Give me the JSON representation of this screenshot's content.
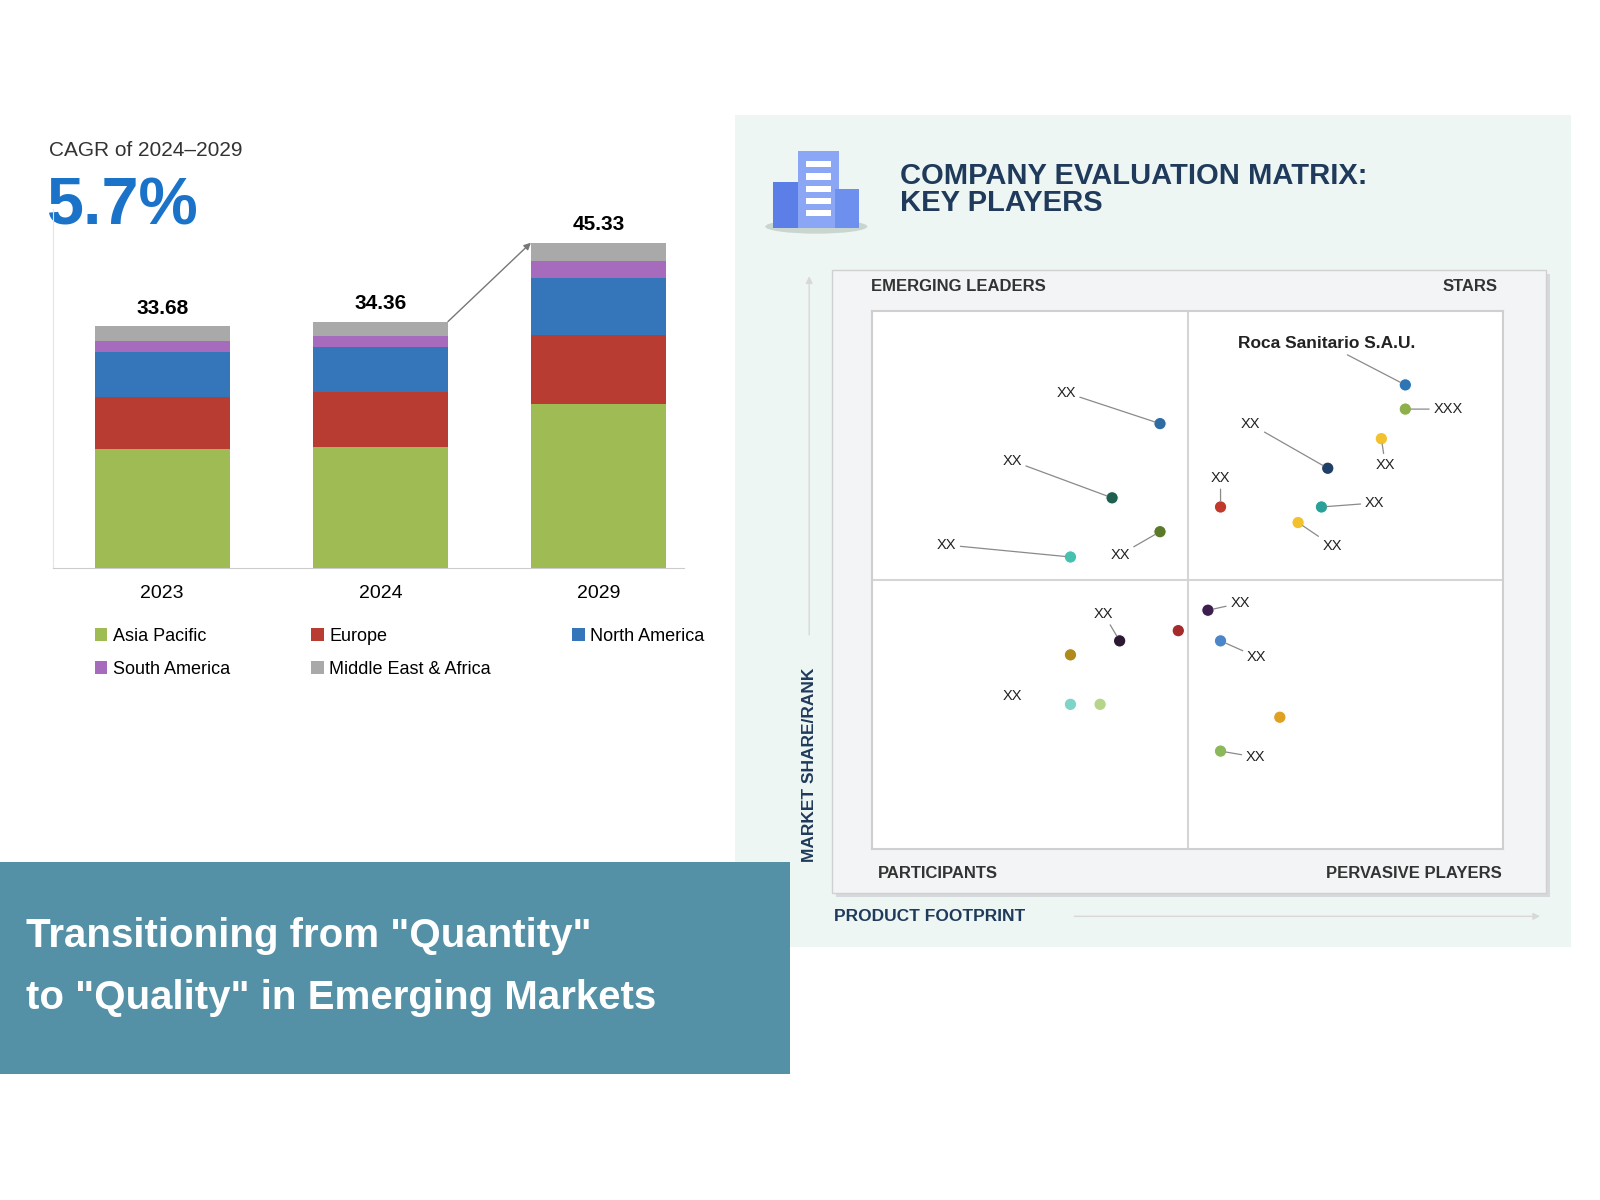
{
  "chart_data": [
    {
      "type": "bar",
      "stacked": true,
      "annotations": [
        "CAGR of 2024–2029",
        "5.7%"
      ],
      "categories": [
        "2023",
        "2024",
        "2029"
      ],
      "series": [
        {
          "name": "Asia Pacific",
          "color": "#9fbb53",
          "values": [
            16.56,
            16.91,
            22.88
          ]
        },
        {
          "name": "Europe",
          "color": "#b93c33",
          "values": [
            7.24,
            7.7,
            9.58
          ]
        },
        {
          "name": "North America",
          "color": "#3476b9",
          "values": [
            6.26,
            6.18,
            8.01
          ]
        },
        {
          "name": "South America",
          "color": "#a66bbd",
          "values": [
            1.53,
            1.51,
            2.29
          ]
        },
        {
          "name": "Middle East & Africa",
          "color": "#a9a9a9",
          "values": [
            2.09,
            2.06,
            2.57
          ]
        }
      ],
      "totals": [
        33.68,
        34.36,
        45.33
      ],
      "ylim": [
        0,
        50
      ],
      "yticks": [],
      "tick_labels": "x",
      "grid": false,
      "legend": "upper left"
    },
    {
      "type": "scatter",
      "title": "COMPANY EVALUATION MATRIX:\nKEY PLAYERS",
      "x_label": "PRODUCT FOOTPRINT",
      "y_label": "MARKET SHARE/RANK",
      "quadrants": {
        "upper_left": "EMERGING LEADERS",
        "upper_right": "STARS",
        "lower_left": "PARTICIPANTS",
        "lower_right": "PERVASIVE PLAYERS"
      },
      "quadrant_split": {
        "x": 50,
        "y": 50
      },
      "xlim": [
        0,
        100
      ],
      "ylim": [
        0,
        100
      ],
      "xticks": [],
      "yticks": [],
      "tick_labels": false,
      "x": [
        84.5,
        84.5,
        45.6,
        72.2,
        80.7,
        38.0,
        55.2,
        71.2,
        67.5,
        45.6,
        31.4,
        53.2,
        48.5,
        39.2,
        31.4,
        55.2,
        31.4,
        36.1,
        64.6,
        55.2
      ],
      "y": [
        86.3,
        81.8,
        79.1,
        70.8,
        76.3,
        65.3,
        63.6,
        63.6,
        60.7,
        59.0,
        54.3,
        44.4,
        40.6,
        38.7,
        36.1,
        38.7,
        26.9,
        26.9,
        24.5,
        18.2
      ],
      "colors": [
        "#2e75b6",
        "#8db04a",
        "#2e6da4",
        "#1f3f66",
        "#f2c12e",
        "#1f5f4f",
        "#c0392b",
        "#2aa198",
        "#f2c12e",
        "#5a7a2a",
        "#48c0b0",
        "#3d1f4f",
        "#a52a2a",
        "#2a1a33",
        "#b08a1a",
        "#4a86c8",
        "#7fd4c8",
        "#b5d68a",
        "#e0a020",
        "#8ab85a"
      ],
      "point_labels": [
        "Roca Sanitario S.A.U.",
        "XXX",
        "XX",
        "XX",
        "XX",
        "XX",
        "XX",
        "XX",
        "XX",
        "XX",
        "XX",
        "XX",
        null,
        "XX",
        null,
        "XX",
        "XX",
        null,
        null,
        "XX"
      ]
    }
  ],
  "banner": {
    "text": "Transitioning from \"Quantity\"\nto \"Quality\" in Emerging Markets"
  }
}
